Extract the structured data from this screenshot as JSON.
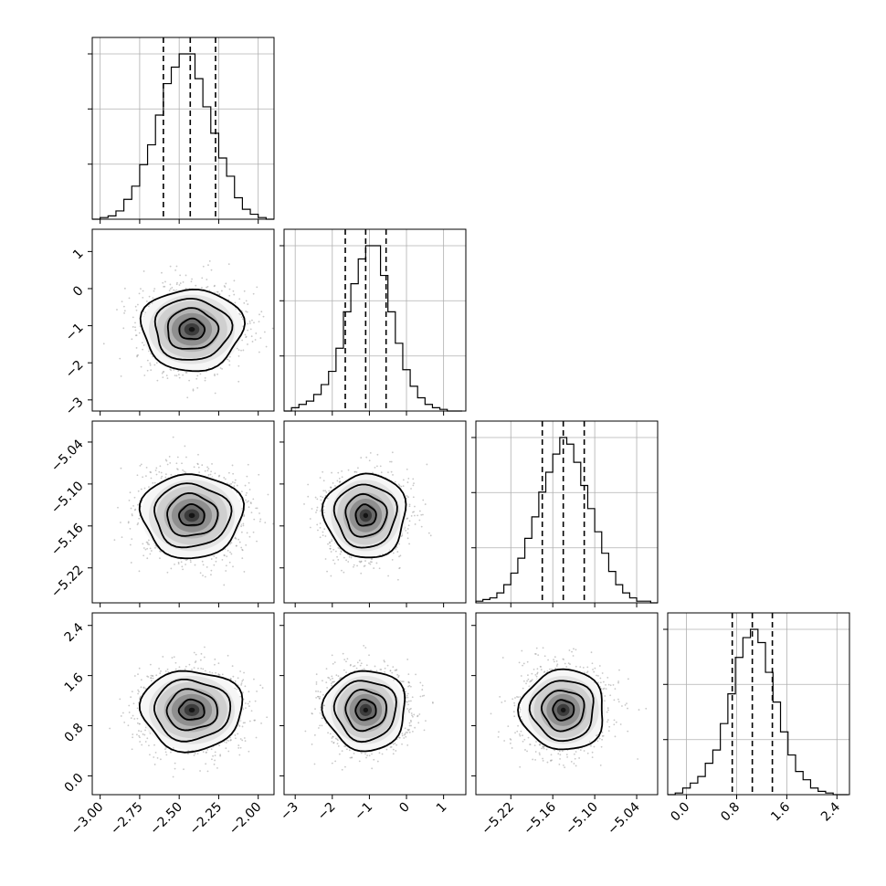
{
  "chart_data": {
    "type": "corner",
    "grid": true,
    "n_params": 4,
    "params": [
      {
        "index": 0,
        "mean": -2.42,
        "std": 0.16,
        "quantiles": [
          -2.6,
          -2.43,
          -2.27
        ],
        "range": [
          -3.05,
          -1.9
        ],
        "ticks": [
          -3.0,
          -2.75,
          -2.5,
          -2.25,
          -2.0
        ],
        "tick_labels": [
          "−3.00",
          "−2.75",
          "−2.50",
          "−2.25",
          "−2.00"
        ]
      },
      {
        "index": 1,
        "mean": -1.1,
        "std": 0.55,
        "quantiles": [
          -1.65,
          -1.1,
          -0.55
        ],
        "range": [
          -3.3,
          1.6
        ],
        "ticks": [
          -3,
          -2,
          -1,
          0,
          1
        ],
        "tick_labels": [
          "−3",
          "−2",
          "−1",
          "0",
          "1"
        ]
      },
      {
        "index": 2,
        "mean": -5.145,
        "std": 0.03,
        "quantiles": [
          -5.175,
          -5.145,
          -5.115
        ],
        "range": [
          -5.27,
          -5.01
        ],
        "ticks": [
          -5.22,
          -5.16,
          -5.1,
          -5.04
        ],
        "tick_labels": [
          "−5.22",
          "−5.16",
          "−5.10",
          "−5.04"
        ]
      },
      {
        "index": 3,
        "mean": 1.05,
        "std": 0.32,
        "quantiles": [
          0.73,
          1.05,
          1.37
        ],
        "range": [
          -0.3,
          2.6
        ],
        "ticks": [
          0.0,
          0.8,
          1.6,
          2.4
        ],
        "tick_labels": [
          "0.0",
          "0.8",
          "1.6",
          "2.4"
        ]
      }
    ],
    "histograms": [
      {
        "param": 0,
        "bins": [
          -3.05,
          -3.0,
          -2.95,
          -2.9,
          -2.85,
          -2.8,
          -2.75,
          -2.7,
          -2.65,
          -2.6,
          -2.55,
          -2.5,
          -2.45,
          -2.4,
          -2.35,
          -2.3,
          -2.25,
          -2.2,
          -2.15,
          -2.1,
          -2.05,
          -2.0,
          -1.95,
          -1.9
        ],
        "counts": [
          0.0,
          0.01,
          0.02,
          0.05,
          0.12,
          0.2,
          0.33,
          0.45,
          0.63,
          0.82,
          0.92,
          1.0,
          1.0,
          0.85,
          0.68,
          0.52,
          0.37,
          0.26,
          0.13,
          0.06,
          0.03,
          0.01,
          0.0
        ]
      },
      {
        "param": 1,
        "bins": [
          -3.3,
          -3.1,
          -2.9,
          -2.7,
          -2.5,
          -2.3,
          -2.1,
          -1.9,
          -1.7,
          -1.5,
          -1.3,
          -1.1,
          -0.9,
          -0.7,
          -0.5,
          -0.3,
          -0.1,
          0.1,
          0.3,
          0.5,
          0.7,
          0.9,
          1.1,
          1.3,
          1.5
        ],
        "counts": [
          0.0,
          0.02,
          0.04,
          0.06,
          0.1,
          0.16,
          0.24,
          0.38,
          0.6,
          0.77,
          0.92,
          1.0,
          1.0,
          0.82,
          0.6,
          0.41,
          0.25,
          0.15,
          0.08,
          0.04,
          0.02,
          0.01,
          0.0,
          0.0
        ]
      },
      {
        "param": 2,
        "bins": [
          -5.27,
          -5.26,
          -5.25,
          -5.24,
          -5.23,
          -5.22,
          -5.21,
          -5.2,
          -5.19,
          -5.18,
          -5.17,
          -5.16,
          -5.15,
          -5.14,
          -5.13,
          -5.12,
          -5.11,
          -5.1,
          -5.09,
          -5.08,
          -5.07,
          -5.06,
          -5.05,
          -5.04,
          -5.03,
          -5.02,
          -5.01
        ],
        "counts": [
          0.01,
          0.02,
          0.03,
          0.06,
          0.11,
          0.18,
          0.27,
          0.39,
          0.52,
          0.67,
          0.79,
          0.9,
          1.0,
          0.96,
          0.85,
          0.71,
          0.57,
          0.43,
          0.3,
          0.19,
          0.11,
          0.06,
          0.03,
          0.01,
          0.01,
          0.0
        ]
      },
      {
        "param": 3,
        "bins": [
          -0.3,
          -0.18,
          -0.06,
          0.06,
          0.18,
          0.3,
          0.42,
          0.54,
          0.66,
          0.78,
          0.9,
          1.02,
          1.14,
          1.26,
          1.38,
          1.5,
          1.62,
          1.74,
          1.86,
          1.98,
          2.1,
          2.22,
          2.34,
          2.46,
          2.58
        ],
        "counts": [
          0.0,
          0.01,
          0.04,
          0.07,
          0.11,
          0.19,
          0.27,
          0.43,
          0.61,
          0.83,
          0.95,
          1.0,
          0.92,
          0.74,
          0.56,
          0.38,
          0.24,
          0.14,
          0.09,
          0.04,
          0.02,
          0.01,
          0.0,
          0.0
        ]
      }
    ],
    "pairs": [
      {
        "x": 0,
        "y": 1
      },
      {
        "x": 0,
        "y": 2
      },
      {
        "x": 1,
        "y": 2
      },
      {
        "x": 0,
        "y": 3
      },
      {
        "x": 1,
        "y": 3
      },
      {
        "x": 2,
        "y": 3
      }
    ],
    "contour_levels_sigma": [
      0.5,
      1.0,
      1.5,
      2.0
    ]
  }
}
